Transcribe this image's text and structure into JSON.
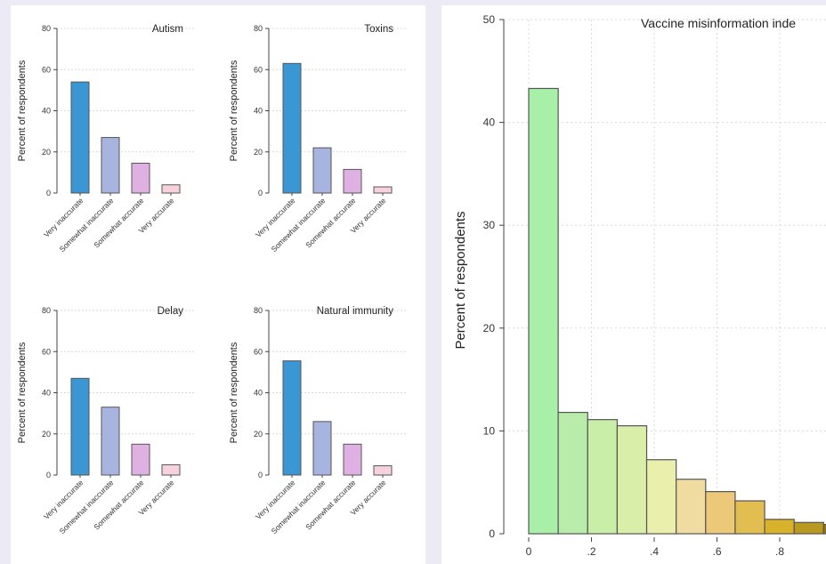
{
  "colors": {
    "page_bg": "#eceaf4",
    "panel_bg": "#ffffff",
    "very_inaccurate": "#3b97d3",
    "somewhat_inaccurate": "#a8b4e0",
    "somewhat_accurate": "#dfb1e3",
    "very_accurate": "#f7d2dc",
    "bar_stroke": "#555555",
    "grid": "#d9d9d9"
  },
  "chart_data": [
    {
      "type": "bar",
      "title": "Autism",
      "ylabel": "Percent of respondents",
      "ylim": [
        0,
        80
      ],
      "yticks": [
        "0",
        "20",
        "40",
        "60",
        "80"
      ],
      "categories": [
        "Very inaccurate",
        "Somewhat inaccurate",
        "Somewhat accurate",
        "Very accurate"
      ],
      "values": [
        54,
        27,
        14.5,
        4
      ]
    },
    {
      "type": "bar",
      "title": "Toxins",
      "ylabel": "Percent of respondents",
      "ylim": [
        0,
        80
      ],
      "yticks": [
        "0",
        "20",
        "40",
        "60",
        "80"
      ],
      "categories": [
        "Very inaccurate",
        "Somewhat inaccurate",
        "Somewhat accurate",
        "Very accurate"
      ],
      "values": [
        63,
        22,
        11.5,
        3
      ]
    },
    {
      "type": "bar",
      "title": "Delay",
      "ylabel": "Percent of respondents",
      "ylim": [
        0,
        80
      ],
      "yticks": [
        "0",
        "20",
        "40",
        "60",
        "80"
      ],
      "categories": [
        "Very inaccurate",
        "Somewhat inaccurate",
        "Somewhat accurate",
        "Very accurate"
      ],
      "values": [
        47,
        33,
        15,
        5
      ]
    },
    {
      "type": "bar",
      "title": "Natural immunity",
      "ylabel": "Percent of respondents",
      "ylim": [
        0,
        80
      ],
      "yticks": [
        "0",
        "20",
        "40",
        "60",
        "80"
      ],
      "categories": [
        "Very inaccurate",
        "Somewhat inaccurate",
        "Somewhat accurate",
        "Very accurate"
      ],
      "values": [
        55.5,
        26,
        15,
        4.5
      ]
    },
    {
      "type": "bar",
      "subtype": "histogram",
      "title": "Vaccine misinformation inde",
      "ylabel": "Percent of respondents",
      "ylim": [
        0,
        50
      ],
      "yticks": [
        "0",
        "10",
        "20",
        "30",
        "40",
        "50"
      ],
      "xticks": [
        "0",
        ".2",
        ".4",
        ".6",
        ".8"
      ],
      "bin_width": 0.094,
      "bin_starts": [
        0,
        0.094,
        0.188,
        0.282,
        0.376,
        0.47,
        0.564,
        0.658,
        0.752,
        0.846,
        0.94
      ],
      "values": [
        43.3,
        11.8,
        11.1,
        10.5,
        7.2,
        5.3,
        4.1,
        3.2,
        1.4,
        1.1,
        0.9
      ],
      "colors": [
        "#a8f0a8",
        "#b9ecaa",
        "#c8eea8",
        "#d9eea8",
        "#eaf0ac",
        "#f0dca0",
        "#ebc978",
        "#e2bd50",
        "#d8b22a",
        "#b89a22",
        "#8e7a18"
      ]
    }
  ]
}
